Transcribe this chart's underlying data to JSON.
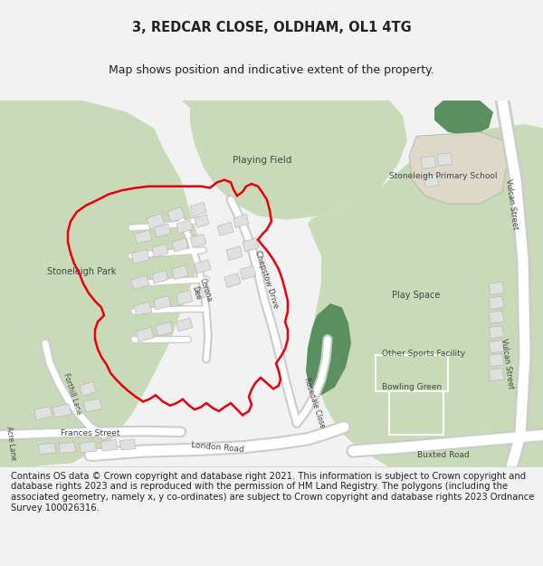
{
  "title": "3, REDCAR CLOSE, OLDHAM, OL1 4TG",
  "subtitle": "Map shows position and indicative extent of the property.",
  "footer": "Contains OS data © Crown copyright and database right 2021. This information is subject to Crown copyright and database rights 2023 and is reproduced with the permission of HM Land Registry. The polygons (including the associated geometry, namely x, y co-ordinates) are subject to Crown copyright and database rights 2023 Ordnance Survey 100026316.",
  "bg_color": "#f2f2f2",
  "map_bg": "#ffffff",
  "green_light": "#c8dab8",
  "green_mid": "#a8c898",
  "green_dark": "#5a9060",
  "building_fill": "#e0e0e0",
  "building_edge": "#b0b0b0",
  "road_fill": "#ffffff",
  "road_edge": "#d0d0d0",
  "red_line": "#e8000a",
  "text_dark": "#222222",
  "text_map": "#444444",
  "title_fs": 10.5,
  "subtitle_fs": 9,
  "footer_fs": 7.2,
  "map_label_fs": 7.0
}
